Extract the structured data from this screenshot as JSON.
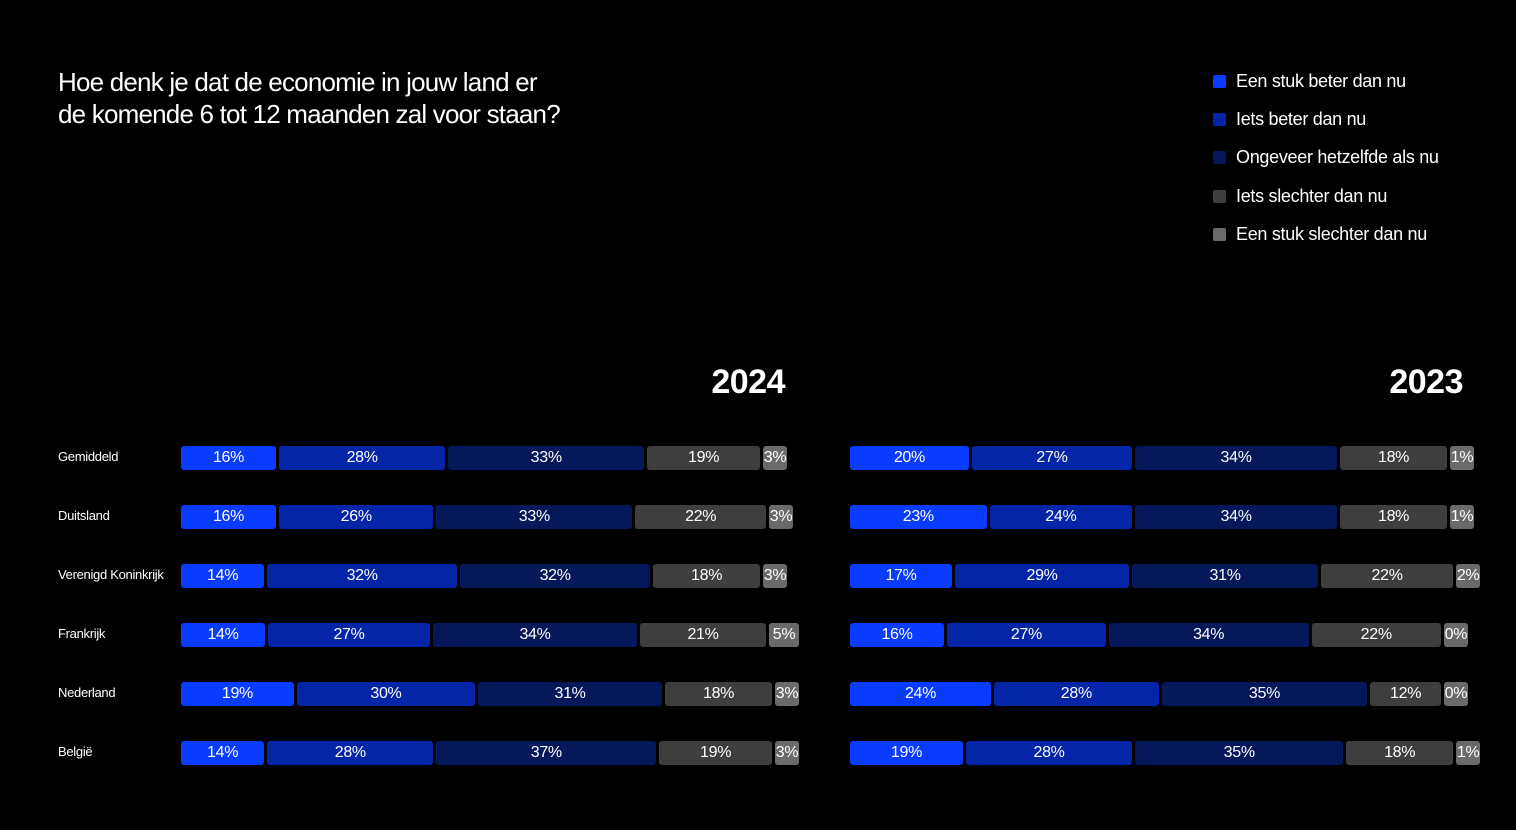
{
  "header": {
    "title_line1": "Hoe denk je dat de economie in jouw land er",
    "title_line2": "de komende 6 tot 12 maanden zal voor staan?"
  },
  "legend": [
    {
      "label": "Een stuk beter dan nu",
      "color": "#0a3cff"
    },
    {
      "label": "Iets beter dan nu",
      "color": "#0425a8"
    },
    {
      "label": "Ongeveer hetzelfde als nu",
      "color": "#04185a"
    },
    {
      "label": "Iets slechter dan nu",
      "color": "#3e3e3e"
    },
    {
      "label": "Een stuk slechter dan nu",
      "color": "#6a6a6a"
    }
  ],
  "chart_data": {
    "type": "bar",
    "orientation": "horizontal",
    "stacked": true,
    "title": "Hoe denk je dat de economie in jouw land er de komende 6 tot 12 maanden zal voor staan?",
    "categories": [
      "Gemiddeld",
      "Duitsland",
      "Verenigd Koninkrijk",
      "Frankrijk",
      "Nederland",
      "België"
    ],
    "series_names": [
      "Een stuk beter dan nu",
      "Iets beter dan nu",
      "Ongeveer hetzelfde als nu",
      "Iets slechter dan nu",
      "Een stuk slechter dan nu"
    ],
    "legend_position": "top-right",
    "unit": "%",
    "panels": [
      {
        "year": "2024",
        "rows": [
          [
            16,
            28,
            33,
            19,
            3
          ],
          [
            16,
            26,
            33,
            22,
            3
          ],
          [
            14,
            32,
            32,
            18,
            3
          ],
          [
            14,
            27,
            34,
            21,
            5
          ],
          [
            19,
            30,
            31,
            18,
            3
          ],
          [
            14,
            28,
            37,
            19,
            3
          ]
        ]
      },
      {
        "year": "2023",
        "rows": [
          [
            20,
            27,
            34,
            18,
            1
          ],
          [
            23,
            24,
            34,
            18,
            1
          ],
          [
            17,
            29,
            31,
            22,
            2
          ],
          [
            16,
            27,
            34,
            22,
            0
          ],
          [
            24,
            28,
            35,
            12,
            0
          ],
          [
            19,
            28,
            35,
            18,
            1
          ]
        ]
      }
    ]
  }
}
